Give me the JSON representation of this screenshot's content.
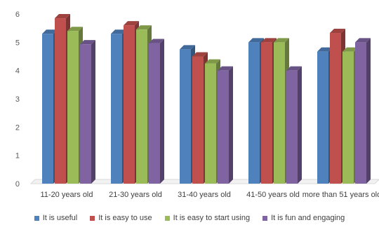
{
  "chart_data": {
    "type": "bar",
    "categories": [
      "11-20 years old",
      "21-30 years old",
      "31-40 years old",
      "41-50 years old",
      "more than 51 years old"
    ],
    "series": [
      {
        "name": "It is useful",
        "color": "#4F81BD",
        "values": [
          5.3,
          5.3,
          4.75,
          5.0,
          4.67
        ]
      },
      {
        "name": "It is easy to use",
        "color": "#C0504D",
        "values": [
          5.85,
          5.6,
          4.5,
          5.0,
          5.33
        ]
      },
      {
        "name": "It is easy to start using",
        "color": "#9BBB59",
        "values": [
          5.4,
          5.45,
          4.25,
          5.0,
          4.67
        ]
      },
      {
        "name": "It is fun and engaging",
        "color": "#8064A2",
        "values": [
          4.93,
          4.97,
          4.0,
          4.0,
          5.0
        ]
      }
    ],
    "ylim": [
      0,
      6
    ],
    "yticks": [
      0,
      1,
      2,
      3,
      4,
      5,
      6
    ],
    "grid": false,
    "style": "3d-clustered-column",
    "legend": "bottom"
  }
}
